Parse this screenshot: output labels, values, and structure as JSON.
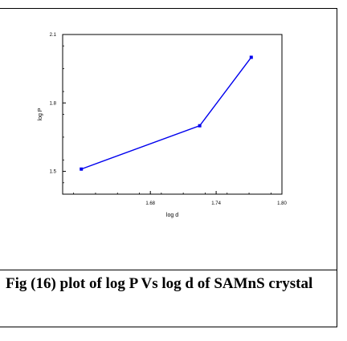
{
  "chart_data": {
    "type": "line",
    "xlabel": "log d",
    "ylabel": "log P",
    "xlim": [
      1.6,
      1.8
    ],
    "ylim": [
      1.4,
      2.1
    ],
    "x_ticks": [
      1.68,
      1.74,
      1.8
    ],
    "x_tick_labels": [
      "1.68",
      "1.74",
      "1.80"
    ],
    "y_ticks": [
      1.5,
      1.8,
      2.1
    ],
    "y_tick_labels": [
      "1.5",
      "1.8",
      "2.1"
    ],
    "grid": false,
    "series": [
      {
        "x": [
          1.617,
          1.725,
          1.772
        ],
        "y": [
          1.51,
          1.7,
          2.0
        ],
        "color": "#0000ee"
      }
    ]
  },
  "caption": {
    "text": "Fig (16) plot of log P Vs log d of SAMnS crystal"
  }
}
